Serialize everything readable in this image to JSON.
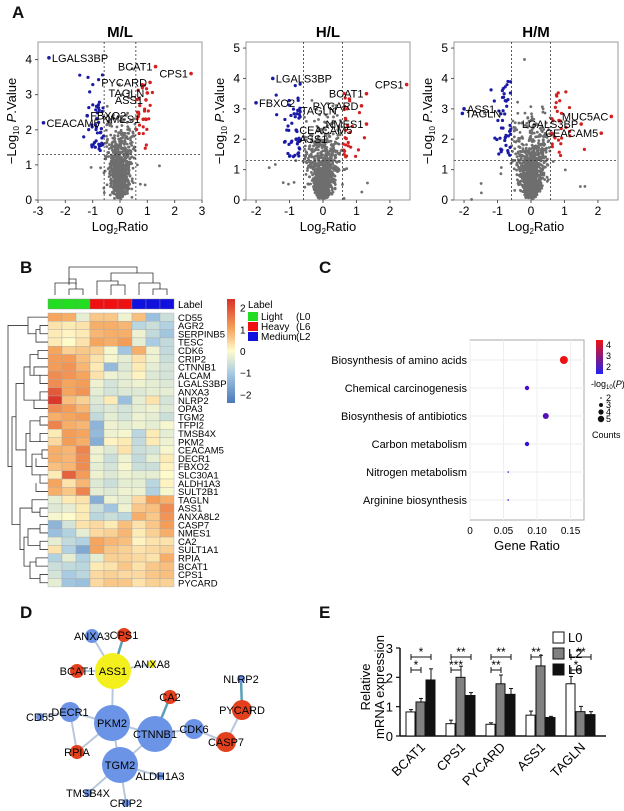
{
  "panels": {
    "A": "A",
    "B": "B",
    "C": "C",
    "D": "D",
    "E": "E"
  },
  "chart_data": [
    {
      "id": "volcano-ML",
      "type": "scatter",
      "title": "M/L",
      "xlabel": "Log2Ratio",
      "ylabel": "-Log10 P.Value",
      "xlim": [
        -3,
        3
      ],
      "ylim": [
        0,
        4.5
      ],
      "xticks": [
        -3,
        -2,
        -1,
        0,
        1,
        2,
        3
      ],
      "yticks": [
        0,
        1,
        2,
        3,
        4
      ],
      "thresholds": {
        "x": [
          -0.58,
          0.58
        ],
        "y": 1.3
      },
      "colors": {
        "down": "#1a1aa6",
        "up": "#d42020",
        "ns": "#6e6e6e"
      },
      "labels": [
        {
          "text": "LGALS3BP",
          "x": -2.6,
          "y": 4.05,
          "group": "down"
        },
        {
          "text": "FBXO2",
          "x": -1.2,
          "y": 2.4,
          "group": "down"
        },
        {
          "text": "CEACAM5",
          "x": -2.8,
          "y": 2.2,
          "group": "down"
        },
        {
          "text": "BCAT1",
          "x": 1.3,
          "y": 3.8,
          "group": "up"
        },
        {
          "text": "CPS1",
          "x": 2.6,
          "y": 3.6,
          "group": "up"
        },
        {
          "text": "PYCARD",
          "x": 1.1,
          "y": 3.35,
          "group": "up"
        },
        {
          "text": "TAGLN",
          "x": 1.0,
          "y": 3.05,
          "group": "up"
        },
        {
          "text": "ASS1",
          "x": 0.95,
          "y": 2.85,
          "group": "up"
        },
        {
          "text": "NMES1",
          "x": 0.85,
          "y": 2.3,
          "group": "up"
        }
      ]
    },
    {
      "id": "volcano-HL",
      "type": "scatter",
      "title": "H/L",
      "xlabel": "Log2Ratio",
      "ylabel": "-Log10 P.Value",
      "xlim": [
        -2.3,
        2.6
      ],
      "ylim": [
        0,
        5.2
      ],
      "xticks": [
        -2,
        -1,
        0,
        1,
        2
      ],
      "yticks": [
        0,
        1,
        2,
        3,
        4,
        5
      ],
      "thresholds": {
        "x": [
          -0.58,
          0.58
        ],
        "y": 1.3
      },
      "colors": {
        "down": "#1a1aa6",
        "up": "#d42020",
        "ns": "#6e6e6e"
      },
      "labels": [
        {
          "text": "LGALS3BP",
          "x": -1.5,
          "y": 4.0,
          "group": "down"
        },
        {
          "text": "FBXO2",
          "x": -2.0,
          "y": 3.2,
          "group": "down"
        },
        {
          "text": "TAGLN",
          "x": -0.75,
          "y": 2.95,
          "group": "down"
        },
        {
          "text": "CEACAM5",
          "x": -0.8,
          "y": 2.3,
          "group": "down"
        },
        {
          "text": "ASS1",
          "x": -0.8,
          "y": 2.0,
          "group": "down"
        },
        {
          "text": "CPS1",
          "x": 2.5,
          "y": 3.8,
          "group": "up"
        },
        {
          "text": "BCAT1",
          "x": 1.3,
          "y": 3.5,
          "group": "up"
        },
        {
          "text": "PYCARD",
          "x": 1.15,
          "y": 3.1,
          "group": "up"
        },
        {
          "text": "NMES1",
          "x": 1.3,
          "y": 2.5,
          "group": "up"
        }
      ]
    },
    {
      "id": "volcano-HM",
      "type": "scatter",
      "title": "H/M",
      "xlabel": "Log2Ratio",
      "ylabel": "-Log10 P.Value",
      "xlim": [
        -2.3,
        2.6
      ],
      "ylim": [
        0,
        5.2
      ],
      "xticks": [
        -2,
        -1,
        0,
        1,
        2
      ],
      "yticks": [
        0,
        1,
        2,
        3,
        4,
        5
      ],
      "thresholds": {
        "x": [
          -0.58,
          0.58
        ],
        "y": 1.3
      },
      "colors": {
        "down": "#1a1aa6",
        "up": "#d42020",
        "ns": "#6e6e6e"
      },
      "labels": [
        {
          "text": "ASS1",
          "x": -2.0,
          "y": 3.0,
          "group": "down"
        },
        {
          "text": "TAGLN",
          "x": -2.05,
          "y": 2.85,
          "group": "down"
        },
        {
          "text": "MUC5AC",
          "x": 2.4,
          "y": 2.75,
          "group": "up"
        },
        {
          "text": "LGALS3BP",
          "x": 1.5,
          "y": 2.5,
          "group": "up"
        },
        {
          "text": "CEACAM5",
          "x": 2.1,
          "y": 2.2,
          "group": "up"
        }
      ]
    },
    {
      "id": "heatmap",
      "type": "heatmap",
      "column_label_title": "Label",
      "column_groups": [
        "Light",
        "Light",
        "Light",
        "Heavy",
        "Heavy",
        "Heavy",
        "Medium",
        "Medium",
        "Medium"
      ],
      "legend": {
        "title": "Label",
        "entries": [
          {
            "name": "Light",
            "code": "(L0)",
            "color": "#22dd22"
          },
          {
            "name": "Heavy",
            "code": "(L6)",
            "color": "#ee1111"
          },
          {
            "name": "Medium",
            "code": "(L2)",
            "color": "#1111dd"
          }
        ]
      },
      "colorbar": {
        "min": -2.4,
        "max": 2.4,
        "ticks": [
          2,
          1,
          0,
          -1,
          -2
        ],
        "colors": [
          "#4a78b8",
          "#a9cce3",
          "#fffccc",
          "#f5a55d",
          "#d73027"
        ]
      },
      "rows": [
        "CD55",
        "AGR2",
        "SERPINB5",
        "TESC",
        "CDK6",
        "CRIP2",
        "CTNNB1",
        "ALCAM",
        "LGALS3BP",
        "ANXA3",
        "NLRP2",
        "OPA3",
        "TGM2",
        "TFPI2",
        "TMSB4X",
        "PKM2",
        "CEACAM5",
        "DECR1",
        "FBXO2",
        "SLC30A1",
        "ALDH1A3",
        "SULT2B1",
        "TAGLN",
        "ASS1",
        "ANXA8L2",
        "CASP7",
        "NMES1",
        "CA2",
        "SULT1A1",
        "RPIA",
        "BCAT1",
        "CPS1",
        "PYCARD"
      ],
      "values": [
        [
          1.0,
          0.9,
          -0.3,
          0.6,
          0.6,
          -0.2,
          0.7,
          -1.2,
          -0.6
        ],
        [
          0.3,
          0.2,
          0.3,
          0.9,
          0.9,
          0.8,
          -0.8,
          -0.6,
          -0.9
        ],
        [
          0.2,
          0.1,
          0.2,
          0.8,
          0.9,
          0.9,
          -0.2,
          -0.7,
          -1.1
        ],
        [
          0.2,
          0.0,
          0.3,
          1.0,
          0.9,
          1.1,
          -0.3,
          -1.0,
          -0.7
        ],
        [
          1.0,
          0.5,
          0.6,
          0.5,
          -0.1,
          -1.1,
          0.9,
          -0.2,
          -0.7
        ],
        [
          1.1,
          1.1,
          0.7,
          0.3,
          -0.1,
          -0.3,
          0.3,
          -0.2,
          -0.6
        ],
        [
          1.1,
          1.2,
          0.8,
          0.2,
          -1.3,
          -0.4,
          0.2,
          -0.3,
          -0.5
        ],
        [
          1.3,
          1.2,
          1.0,
          0.3,
          -0.2,
          -0.3,
          0.1,
          -0.4,
          -0.5
        ],
        [
          1.3,
          1.0,
          1.1,
          -0.2,
          -0.5,
          -0.3,
          -0.2,
          -0.3,
          -0.4
        ],
        [
          1.9,
          1.0,
          1.2,
          -0.3,
          -0.5,
          -0.4,
          -0.4,
          -0.3,
          -0.3
        ],
        [
          2.3,
          0.7,
          0.5,
          -0.4,
          0.2,
          -1.2,
          -0.3,
          0.3,
          -0.5
        ],
        [
          1.3,
          1.1,
          0.8,
          -0.5,
          -0.4,
          -0.5,
          -0.3,
          -0.2,
          -0.4
        ],
        [
          0.9,
          1.0,
          1.1,
          -0.7,
          -0.3,
          -0.5,
          -0.2,
          -0.3,
          -0.6
        ],
        [
          1.4,
          0.9,
          0.8,
          -1.4,
          -0.2,
          -0.3,
          -0.2,
          -0.3,
          -0.1
        ],
        [
          0.2,
          1.1,
          1.0,
          -1.3,
          -0.2,
          -0.1,
          -0.8,
          0.2,
          -0.3
        ],
        [
          0.4,
          1.1,
          0.9,
          -1.5,
          0.1,
          0.2,
          -0.7,
          0.2,
          -0.2
        ],
        [
          0.9,
          0.8,
          1.4,
          -0.2,
          -0.4,
          0.3,
          -0.6,
          -0.5,
          -0.1
        ],
        [
          0.9,
          0.8,
          1.3,
          -0.2,
          -0.6,
          -0.2,
          -0.7,
          -0.3,
          0.2
        ],
        [
          0.7,
          0.8,
          1.3,
          -0.3,
          -0.5,
          -0.1,
          -0.6,
          -0.6,
          0.1
        ],
        [
          0.2,
          1.8,
          1.1,
          -0.2,
          -0.4,
          -0.2,
          -0.3,
          -0.3,
          0.0
        ],
        [
          1.0,
          0.3,
          0.8,
          -0.4,
          -0.6,
          -0.3,
          -0.3,
          -0.8,
          0.1
        ],
        [
          0.9,
          0.6,
          1.4,
          -0.3,
          -0.4,
          -0.2,
          -0.2,
          -0.9,
          -0.1
        ],
        [
          -0.3,
          0.2,
          0.3,
          -1.5,
          -0.2,
          -0.3,
          0.4,
          1.1,
          0.9
        ],
        [
          -0.4,
          -0.3,
          0.2,
          -0.6,
          -1.1,
          -0.2,
          0.6,
          0.7,
          1.3
        ],
        [
          -0.1,
          0.0,
          0.2,
          -0.8,
          -0.6,
          -0.8,
          0.9,
          0.6,
          1.2
        ],
        [
          -1.4,
          -0.5,
          0.3,
          0.4,
          0.2,
          0.7,
          0.3,
          0.6,
          1.1
        ],
        [
          -1.2,
          -0.9,
          -0.3,
          0.4,
          0.5,
          0.8,
          0.2,
          0.5,
          0.9
        ],
        [
          -0.3,
          -0.7,
          -0.9,
          1.0,
          0.8,
          0.7,
          0.1,
          0.3,
          0.3
        ],
        [
          0.3,
          -0.9,
          -1.6,
          1.0,
          0.6,
          0.5,
          0.3,
          0.4,
          0.5
        ],
        [
          -0.9,
          -0.3,
          -0.9,
          -0.3,
          0.5,
          0.5,
          0.4,
          0.3,
          0.9
        ],
        [
          -0.6,
          -0.7,
          -0.8,
          0.2,
          0.3,
          0.6,
          0.3,
          0.6,
          0.7
        ],
        [
          -0.5,
          -1.0,
          -0.8,
          0.4,
          0.5,
          0.4,
          0.4,
          0.6,
          0.7
        ],
        [
          -0.3,
          -1.1,
          -1.2,
          0.4,
          0.6,
          0.6,
          0.3,
          0.5,
          0.5
        ]
      ]
    },
    {
      "id": "enrichment",
      "type": "scatter",
      "xlabel": "Gene Ratio",
      "xlim": [
        0,
        0.17
      ],
      "xticks": [
        0,
        0.05,
        0.1,
        0.15
      ],
      "xtick_labels": [
        "0",
        "0.05",
        "0.10",
        "0.15"
      ],
      "categories": [
        "Biosynthesis of amino acids",
        "Chemical carcinogenesis",
        "Biosynthesis of antibiotics",
        "Carbon metabolism",
        "Nitrogen metabolism",
        "Arginine biosynthesis"
      ],
      "gene_ratio": [
        0.14,
        0.085,
        0.113,
        0.085,
        0.057,
        0.057
      ],
      "counts": [
        5,
        3,
        4,
        3,
        2,
        2
      ],
      "neg_log10_p": [
        4.2,
        1.9,
        2.1,
        1.7,
        1.4,
        1.4
      ],
      "color_legend": {
        "title": "-log10(P)",
        "ticks": [
          4,
          3,
          2
        ],
        "low": "#2222ee",
        "high": "#ee1111"
      },
      "size_legend": {
        "title": "Counts",
        "values": [
          2,
          3,
          4,
          5
        ]
      }
    },
    {
      "id": "network",
      "type": "network",
      "nodes": [
        {
          "id": "ANXA3",
          "color": "blue",
          "size": "s"
        },
        {
          "id": "CPS1",
          "color": "red",
          "size": "s"
        },
        {
          "id": "ASS1",
          "color": "yellow",
          "size": "l"
        },
        {
          "id": "ANXA8",
          "color": "yellow",
          "size": "xs"
        },
        {
          "id": "BCAT1",
          "color": "red",
          "size": "s"
        },
        {
          "id": "CA2",
          "color": "red",
          "size": "s"
        },
        {
          "id": "CD55",
          "color": "blue",
          "size": "xs"
        },
        {
          "id": "DECR1",
          "color": "blue",
          "size": "m"
        },
        {
          "id": "PKM2",
          "color": "blue",
          "size": "l"
        },
        {
          "id": "CTNNB1",
          "color": "blue",
          "size": "l"
        },
        {
          "id": "CDK6",
          "color": "blue",
          "size": "m"
        },
        {
          "id": "RPIA",
          "color": "red",
          "size": "s"
        },
        {
          "id": "TGM2",
          "color": "blue",
          "size": "l"
        },
        {
          "id": "ALDH1A3",
          "color": "blue",
          "size": "xs"
        },
        {
          "id": "TMSB4X",
          "color": "blue",
          "size": "xs"
        },
        {
          "id": "CRIP2",
          "color": "blue",
          "size": "xs"
        },
        {
          "id": "NLRP2",
          "color": "blue",
          "size": "xs"
        },
        {
          "id": "PYCARD",
          "color": "red",
          "size": "m"
        },
        {
          "id": "CASP7",
          "color": "red",
          "size": "m"
        }
      ],
      "edges": [
        [
          "ANXA3",
          "ASS1"
        ],
        [
          "CPS1",
          "ASS1"
        ],
        [
          "ASS1",
          "ANXA8"
        ],
        [
          "BCAT1",
          "ASS1"
        ],
        [
          "ASS1",
          "PKM2"
        ],
        [
          "CD55",
          "DECR1"
        ],
        [
          "DECR1",
          "PKM2"
        ],
        [
          "DECR1",
          "RPIA"
        ],
        [
          "PKM2",
          "RPIA"
        ],
        [
          "PKM2",
          "CTNNB1"
        ],
        [
          "PKM2",
          "TGM2"
        ],
        [
          "CTNNB1",
          "CA2"
        ],
        [
          "CTNNB1",
          "CDK6"
        ],
        [
          "CTNNB1",
          "TGM2"
        ],
        [
          "CDK6",
          "CASP7"
        ],
        [
          "TGM2",
          "ALDH1A3"
        ],
        [
          "TGM2",
          "TMSB4X"
        ],
        [
          "TGM2",
          "CRIP2"
        ],
        [
          "NLRP2",
          "PYCARD"
        ],
        [
          "PYCARD",
          "CASP7"
        ]
      ],
      "node_colors": {
        "blue": "#6b93e6",
        "red": "#e3411e",
        "yellow": "#f4f01e"
      }
    },
    {
      "id": "qpcr",
      "type": "bar",
      "ylabel": "Relative mRNA expression",
      "ylim": [
        0,
        3
      ],
      "yticks": [
        0,
        1,
        2,
        3
      ],
      "categories": [
        "BCAT1",
        "CPS1",
        "PYCARD",
        "ASS1",
        "TAGLN"
      ],
      "series": [
        {
          "name": "L0",
          "color": "#ffffff",
          "values": [
            0.82,
            0.42,
            0.4,
            0.71,
            1.78
          ],
          "errors": [
            0.08,
            0.12,
            0.05,
            0.14,
            0.25
          ]
        },
        {
          "name": "L2",
          "color": "#808080",
          "values": [
            1.16,
            2.0,
            1.78,
            2.39,
            0.83
          ],
          "errors": [
            0.12,
            0.38,
            0.3,
            0.36,
            0.18
          ]
        },
        {
          "name": "L6",
          "color": "#111111",
          "values": [
            1.91,
            1.38,
            1.42,
            0.63,
            0.73
          ],
          "errors": [
            0.38,
            0.1,
            0.2,
            0.04,
            0.1
          ]
        }
      ],
      "significance": [
        {
          "category": "BCAT1",
          "pair": [
            "L0",
            "L2"
          ],
          "label": "*",
          "level": 0
        },
        {
          "category": "BCAT1",
          "pair": [
            "L0",
            "L6"
          ],
          "label": "*",
          "level": 1
        },
        {
          "category": "CPS1",
          "pair": [
            "L0",
            "L2"
          ],
          "label": "***",
          "level": 0
        },
        {
          "category": "CPS1",
          "pair": [
            "L0",
            "L6"
          ],
          "label": "**",
          "level": 1
        },
        {
          "category": "PYCARD",
          "pair": [
            "L0",
            "L2"
          ],
          "label": "**",
          "level": 0
        },
        {
          "category": "PYCARD",
          "pair": [
            "L0",
            "L6"
          ],
          "label": "**",
          "level": 1
        },
        {
          "category": "ASS1",
          "pair": [
            "L0",
            "L2"
          ],
          "label": "**",
          "level": 1
        },
        {
          "category": "TAGLN",
          "pair": [
            "L0",
            "L2"
          ],
          "label": "*",
          "level": 0
        },
        {
          "category": "TAGLN",
          "pair": [
            "L0",
            "L6"
          ],
          "label": "**",
          "level": 1
        }
      ]
    }
  ]
}
